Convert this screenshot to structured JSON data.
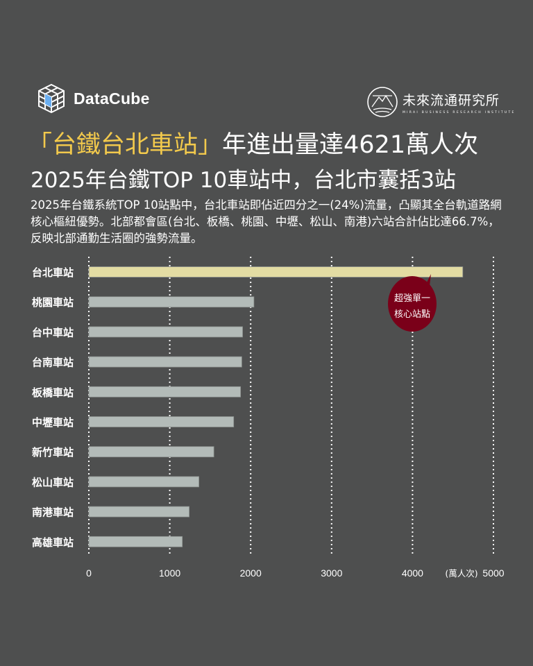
{
  "brand": {
    "left_name": "DataCube",
    "right_name": "未來流通研究所",
    "right_subtitle": "MIRAI BUSINESS RESEARCH INSTITUTE"
  },
  "header": {
    "title_highlight": "「台鐵台北車站」",
    "title_rest": "年進出量達4621萬人次",
    "subtitle": "2025年台鐵TOP 10車站中，台北市囊括3站",
    "description": "2025年台鐵系統TOP 10站點中，台北車站即佔近四分之一(24%)流量，凸顯其全台軌道路網核心樞紐優勢。北部都會區(台北、板橋、桃園、中壢、松山、南港)六站合計佔比達66.7%，反映北部通勤生活圈的強勢流量。"
  },
  "colors": {
    "background": "#4e4f4f",
    "highlight_bar": "#e3dca3",
    "bar": "#b3bbb8",
    "callout": "#7a0019",
    "title_highlight": "#f2c94c"
  },
  "chart_data": {
    "type": "bar",
    "orientation": "horizontal",
    "categories": [
      "台北車站",
      "桃園車站",
      "台中車站",
      "台南車站",
      "板橋車站",
      "中壢車站",
      "新竹車站",
      "松山車站",
      "南港車站",
      "高雄車站"
    ],
    "values": [
      4621,
      2040,
      1900,
      1890,
      1875,
      1790,
      1545,
      1360,
      1240,
      1155
    ],
    "unit_label": "(萬人次)",
    "xlim": [
      0,
      5000
    ],
    "xticks": [
      "0",
      "1000",
      "2000",
      "3000",
      "4000",
      "5000"
    ],
    "grid": true,
    "highlight_index": 0,
    "annotation": {
      "line1": "超強單一",
      "line2": "核心站點"
    }
  }
}
